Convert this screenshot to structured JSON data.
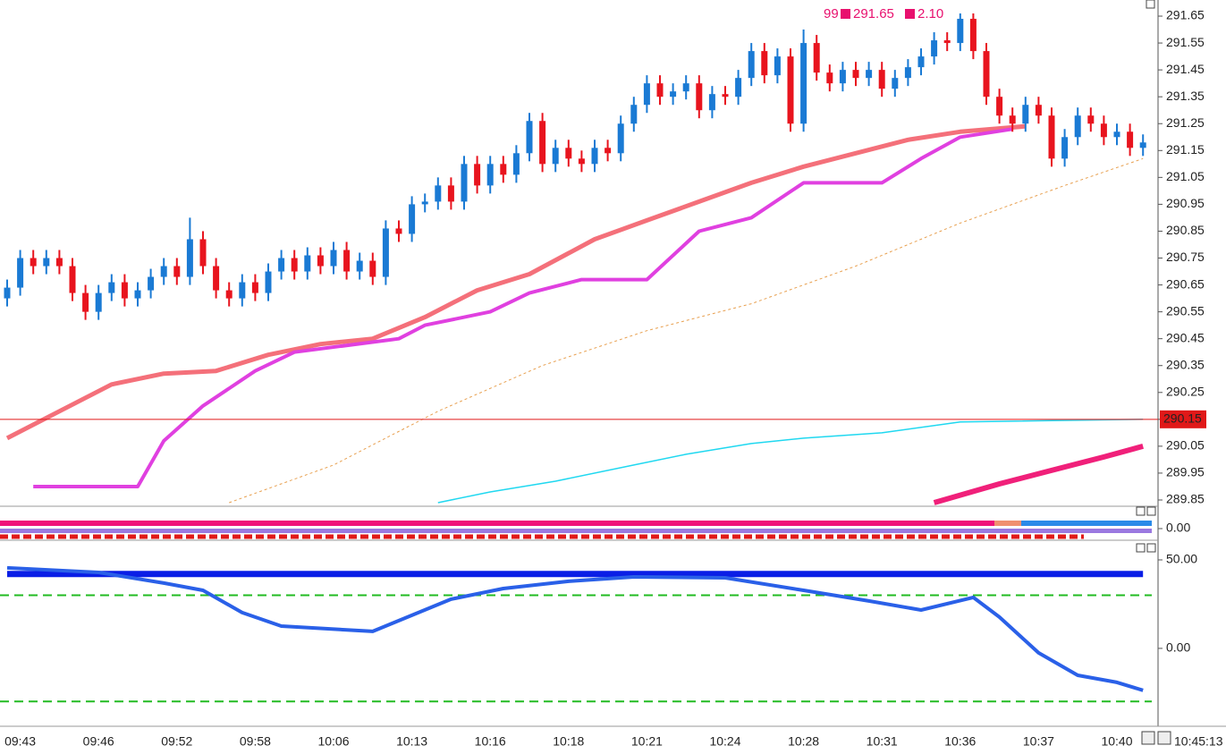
{
  "chart_data": [
    {
      "type": "candlestick",
      "header": [
        "99",
        "291.65",
        "2.10"
      ],
      "up_color": "#1a7ad4",
      "down_color": "#e8141e",
      "ohlc": [
        [
          290.6,
          290.67,
          290.57,
          290.64
        ],
        [
          290.64,
          290.78,
          290.61,
          290.75
        ],
        [
          290.75,
          290.78,
          290.69,
          290.72
        ],
        [
          290.72,
          290.78,
          290.69,
          290.75
        ],
        [
          290.75,
          290.78,
          290.69,
          290.72
        ],
        [
          290.72,
          290.75,
          290.59,
          290.62
        ],
        [
          290.62,
          290.65,
          290.52,
          290.55
        ],
        [
          290.55,
          290.65,
          290.52,
          290.62
        ],
        [
          290.62,
          290.69,
          290.59,
          290.66
        ],
        [
          290.66,
          290.69,
          290.57,
          290.6
        ],
        [
          290.6,
          290.66,
          290.57,
          290.63
        ],
        [
          290.63,
          290.71,
          290.6,
          290.68
        ],
        [
          290.68,
          290.75,
          290.65,
          290.72
        ],
        [
          290.72,
          290.75,
          290.65,
          290.68
        ],
        [
          290.68,
          290.9,
          290.65,
          290.82
        ],
        [
          290.82,
          290.85,
          290.69,
          290.72
        ],
        [
          290.72,
          290.75,
          290.6,
          290.63
        ],
        [
          290.63,
          290.66,
          290.57,
          290.6
        ],
        [
          290.6,
          290.69,
          290.57,
          290.66
        ],
        [
          290.66,
          290.69,
          290.59,
          290.62
        ],
        [
          290.62,
          290.73,
          290.59,
          290.7
        ],
        [
          290.7,
          290.78,
          290.67,
          290.75
        ],
        [
          290.75,
          290.78,
          290.67,
          290.7
        ],
        [
          290.7,
          290.79,
          290.67,
          290.76
        ],
        [
          290.76,
          290.79,
          290.69,
          290.72
        ],
        [
          290.72,
          290.81,
          290.69,
          290.78
        ],
        [
          290.78,
          290.81,
          290.67,
          290.7
        ],
        [
          290.7,
          290.77,
          290.67,
          290.74
        ],
        [
          290.74,
          290.77,
          290.65,
          290.68
        ],
        [
          290.68,
          290.89,
          290.65,
          290.86
        ],
        [
          290.86,
          290.89,
          290.81,
          290.84
        ],
        [
          290.84,
          290.98,
          290.81,
          290.95
        ],
        [
          290.95,
          290.99,
          290.92,
          290.96
        ],
        [
          290.96,
          291.05,
          290.93,
          291.02
        ],
        [
          291.02,
          291.05,
          290.93,
          290.96
        ],
        [
          290.96,
          291.13,
          290.93,
          291.1
        ],
        [
          291.1,
          291.13,
          290.99,
          291.02
        ],
        [
          291.02,
          291.13,
          290.99,
          291.1
        ],
        [
          291.1,
          291.13,
          291.03,
          291.06
        ],
        [
          291.06,
          291.17,
          291.03,
          291.14
        ],
        [
          291.14,
          291.29,
          291.11,
          291.26
        ],
        [
          291.26,
          291.29,
          291.07,
          291.1
        ],
        [
          291.1,
          291.19,
          291.07,
          291.16
        ],
        [
          291.16,
          291.19,
          291.09,
          291.12
        ],
        [
          291.12,
          291.15,
          291.07,
          291.1
        ],
        [
          291.1,
          291.19,
          291.07,
          291.16
        ],
        [
          291.16,
          291.19,
          291.11,
          291.14
        ],
        [
          291.14,
          291.28,
          291.11,
          291.25
        ],
        [
          291.25,
          291.35,
          291.22,
          291.32
        ],
        [
          291.32,
          291.43,
          291.29,
          291.4
        ],
        [
          291.4,
          291.43,
          291.32,
          291.35
        ],
        [
          291.35,
          291.4,
          291.32,
          291.37
        ],
        [
          291.37,
          291.43,
          291.34,
          291.4
        ],
        [
          291.4,
          291.43,
          291.27,
          291.3
        ],
        [
          291.3,
          291.39,
          291.27,
          291.36
        ],
        [
          291.36,
          291.39,
          291.32,
          291.35
        ],
        [
          291.35,
          291.45,
          291.32,
          291.42
        ],
        [
          291.42,
          291.55,
          291.39,
          291.52
        ],
        [
          291.52,
          291.55,
          291.4,
          291.43
        ],
        [
          291.43,
          291.53,
          291.4,
          291.5
        ],
        [
          291.5,
          291.53,
          291.22,
          291.25
        ],
        [
          291.25,
          291.6,
          291.22,
          291.55
        ],
        [
          291.55,
          291.58,
          291.41,
          291.44
        ],
        [
          291.44,
          291.47,
          291.37,
          291.4
        ],
        [
          291.4,
          291.48,
          291.37,
          291.45
        ],
        [
          291.45,
          291.48,
          291.39,
          291.42
        ],
        [
          291.42,
          291.48,
          291.39,
          291.45
        ],
        [
          291.45,
          291.48,
          291.35,
          291.38
        ],
        [
          291.38,
          291.45,
          291.35,
          291.42
        ],
        [
          291.42,
          291.49,
          291.39,
          291.46
        ],
        [
          291.46,
          291.53,
          291.43,
          291.5
        ],
        [
          291.5,
          291.59,
          291.47,
          291.56
        ],
        [
          291.56,
          291.59,
          291.52,
          291.55
        ],
        [
          291.55,
          291.66,
          291.52,
          291.64
        ],
        [
          291.64,
          291.66,
          291.49,
          291.52
        ],
        [
          291.52,
          291.55,
          291.32,
          291.35
        ],
        [
          291.35,
          291.38,
          291.25,
          291.28
        ],
        [
          291.28,
          291.31,
          291.22,
          291.25
        ],
        [
          291.25,
          291.35,
          291.22,
          291.32
        ],
        [
          291.32,
          291.35,
          291.25,
          291.28
        ],
        [
          291.28,
          291.31,
          291.09,
          291.12
        ],
        [
          291.12,
          291.23,
          291.09,
          291.2
        ],
        [
          291.2,
          291.31,
          291.17,
          291.28
        ],
        [
          291.28,
          291.31,
          291.22,
          291.25
        ],
        [
          291.25,
          291.28,
          291.17,
          291.2
        ],
        [
          291.2,
          291.25,
          291.17,
          291.22
        ],
        [
          291.22,
          291.25,
          291.13,
          291.16
        ],
        [
          291.16,
          291.21,
          291.13,
          291.18
        ]
      ],
      "overlays": [
        {
          "color": "#f4707a",
          "width": 5,
          "x": [
            0,
            4,
            8,
            12,
            16,
            20,
            24,
            28,
            32,
            36,
            40,
            45,
            49,
            53,
            57,
            61,
            65,
            69,
            73,
            78
          ],
          "values": [
            290.08,
            290.18,
            290.28,
            290.32,
            290.33,
            290.39,
            290.43,
            290.45,
            290.53,
            290.63,
            290.69,
            290.82,
            290.89,
            290.96,
            291.03,
            291.09,
            291.14,
            291.19,
            291.22,
            291.24
          ]
        },
        {
          "color": "#e040e0",
          "width": 4,
          "x": [
            2,
            10,
            12,
            15,
            19,
            22,
            30,
            32,
            37,
            40,
            44,
            49,
            53,
            57,
            61,
            67,
            70,
            73,
            77
          ],
          "values": [
            289.9,
            289.9,
            290.07,
            290.2,
            290.33,
            290.4,
            290.45,
            290.5,
            290.55,
            290.62,
            290.67,
            290.67,
            290.85,
            290.9,
            291.03,
            291.03,
            291.12,
            291.2,
            291.23
          ]
        },
        {
          "color": "#e8a050",
          "width": 1,
          "dash": true,
          "x": [
            17,
            25,
            33,
            41,
            49,
            57,
            65,
            73,
            81,
            87
          ],
          "values": [
            289.84,
            289.98,
            290.18,
            290.35,
            290.48,
            290.58,
            290.72,
            290.88,
            291.02,
            291.12
          ]
        },
        {
          "color": "#20d8f0",
          "width": 1.5,
          "x": [
            33,
            37,
            42,
            48,
            52,
            57,
            61,
            67,
            73,
            87
          ],
          "values": [
            289.84,
            289.88,
            289.92,
            289.98,
            290.02,
            290.06,
            290.08,
            290.1,
            290.14,
            290.15
          ]
        },
        {
          "color": "#f0207a",
          "width": 6,
          "x": [
            71,
            76,
            80,
            84,
            87
          ],
          "values": [
            289.84,
            289.91,
            289.96,
            290.01,
            290.05
          ]
        }
      ],
      "last_price": 290.15,
      "ylim": [
        289.83,
        291.71
      ],
      "yticks": [
        291.65,
        291.55,
        291.45,
        291.35,
        291.25,
        291.15,
        291.05,
        290.95,
        290.85,
        290.75,
        290.65,
        290.55,
        290.45,
        290.35,
        290.25,
        290.15,
        290.05,
        289.95,
        289.85
      ],
      "x_labels": [
        "09:43",
        "09:46",
        "09:52",
        "09:58",
        "10:06",
        "10:13",
        "10:16",
        "10:18",
        "10:21",
        "10:24",
        "10:28",
        "10:31",
        "10:36",
        "10:37",
        "10:40"
      ],
      "time_stamp": "10:45:13"
    },
    {
      "type": "strip",
      "ylim": [
        -1,
        1
      ],
      "yticks": [
        {
          "value": 0,
          "label": "0.00"
        }
      ]
    },
    {
      "type": "line",
      "ylim": [
        -43,
        60.6
      ],
      "yticks": [
        {
          "value": 50,
          "label": "50.00"
        },
        {
          "value": 0,
          "label": "0.00"
        }
      ],
      "levels": [
        30,
        -30
      ],
      "level_color": "#22bb22",
      "series": [
        {
          "color": "#0a1ee6",
          "width": 7,
          "x": [
            0,
            87
          ],
          "values": [
            42,
            42
          ]
        },
        {
          "color": "#2a60e8",
          "width": 4,
          "x": [
            0,
            7,
            12,
            15,
            18,
            21,
            28,
            31,
            34,
            38,
            43,
            48,
            55,
            61,
            66,
            70,
            74,
            76,
            79,
            82,
            85,
            87
          ],
          "values": [
            45.5,
            42.9,
            36.9,
            32.8,
            20.2,
            12.6,
            9.6,
            18.7,
            27.8,
            33.8,
            37.9,
            40.4,
            39.9,
            32.8,
            26.8,
            21.7,
            28.8,
            17.7,
            -2.5,
            -15.2,
            -19.2,
            -23.7
          ]
        }
      ]
    }
  ]
}
